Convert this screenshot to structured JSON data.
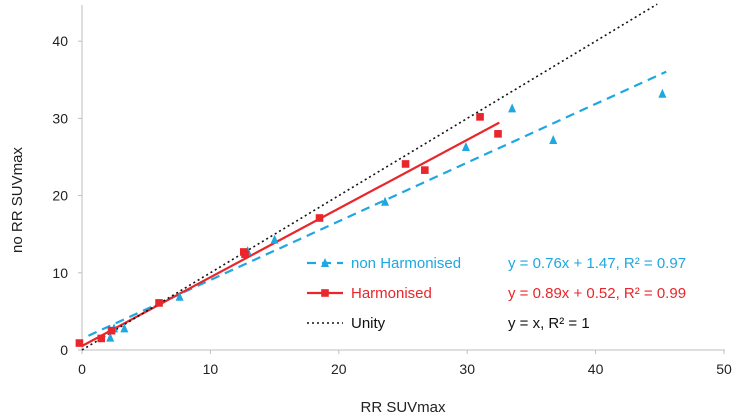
{
  "chart_data": {
    "type": "scatter",
    "xlabel": "RR SUVmax",
    "ylabel": "no RR SUVmax",
    "xlim": [
      0,
      50
    ],
    "ylim": [
      0,
      45
    ],
    "xticks": [
      "0",
      "10",
      "20",
      "30",
      "40",
      "50"
    ],
    "yticks": [
      "0",
      "10",
      "20",
      "30",
      "40"
    ],
    "grid": false,
    "legend_position": "bottom-right",
    "series": [
      {
        "name": "non Harmonised",
        "color": "#1ea7e1",
        "marker": "triangle",
        "line_style": "dashed",
        "equation": "y = 0.76x + 1.47, R² = 0.97",
        "points": [
          [
            2.2,
            1.6
          ],
          [
            2.5,
            2.8
          ],
          [
            3.3,
            2.8
          ],
          [
            7.6,
            6.9
          ],
          [
            12.9,
            12.8
          ],
          [
            15.0,
            14.3
          ],
          [
            23.6,
            19.2
          ],
          [
            29.9,
            26.3
          ],
          [
            33.5,
            31.3
          ],
          [
            36.7,
            27.2
          ],
          [
            45.2,
            33.2
          ]
        ],
        "trend": [
          [
            0.5,
            1.85
          ],
          [
            45.5,
            36.05
          ]
        ]
      },
      {
        "name": "Harmonised",
        "color": "#e8262b",
        "marker": "square",
        "line_style": "solid",
        "equation": "y = 0.89x + 0.52, R² = 0.99",
        "points": [
          [
            -0.2,
            0.9
          ],
          [
            1.5,
            1.5
          ],
          [
            2.3,
            2.5
          ],
          [
            6.0,
            6.1
          ],
          [
            12.6,
            12.7
          ],
          [
            12.7,
            12.4
          ],
          [
            18.5,
            17.1
          ],
          [
            25.2,
            24.1
          ],
          [
            26.7,
            23.3
          ],
          [
            31.0,
            30.2
          ],
          [
            32.4,
            28.0
          ]
        ],
        "trend": [
          [
            0.0,
            0.52
          ],
          [
            32.5,
            29.45
          ]
        ]
      },
      {
        "name": "Unity",
        "color": "#111111",
        "marker": "none",
        "line_style": "dotted",
        "equation": "y = x, R² = 1",
        "points": [],
        "trend": [
          [
            0,
            0
          ],
          [
            44.8,
            44.8
          ]
        ]
      }
    ]
  }
}
